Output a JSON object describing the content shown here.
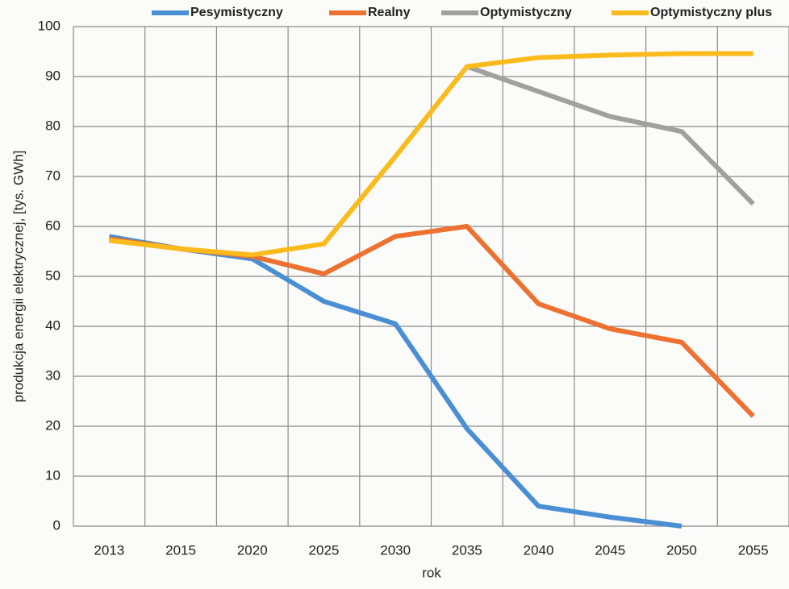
{
  "chart_data": {
    "type": "line",
    "xlabel": "rok",
    "ylabel": "produkcja energii elektrycznej, [tys. GWh]",
    "categories": [
      "2013",
      "2015",
      "2020",
      "2025",
      "2030",
      "2035",
      "2040",
      "2045",
      "2050",
      "2055"
    ],
    "series": [
      {
        "name": "Pesymistyczny",
        "color": "#4a8fd4",
        "values": [
          58,
          55.5,
          53.5,
          45,
          40.5,
          19.5,
          4,
          1.8,
          0,
          null
        ]
      },
      {
        "name": "Realny",
        "color": "#ed7130",
        "values": [
          57.5,
          55.5,
          54,
          50.5,
          58,
          60,
          44.5,
          39.5,
          36.8,
          22
        ]
      },
      {
        "name": "Optymistyczny",
        "color": "#a0a0a0",
        "values": [
          null,
          null,
          null,
          null,
          null,
          92,
          87,
          82,
          79,
          64.5
        ]
      },
      {
        "name": "Optymistyczny plus",
        "color": "#fbbb1c",
        "values": [
          57.2,
          55.5,
          54.3,
          56.5,
          74,
          92,
          93.8,
          94.3,
          94.6,
          94.6
        ]
      }
    ],
    "ylim": [
      0,
      100
    ],
    "yticks": [
      0,
      10,
      20,
      30,
      40,
      50,
      60,
      70,
      80,
      90,
      100
    ],
    "grid": true,
    "legend": "top"
  }
}
